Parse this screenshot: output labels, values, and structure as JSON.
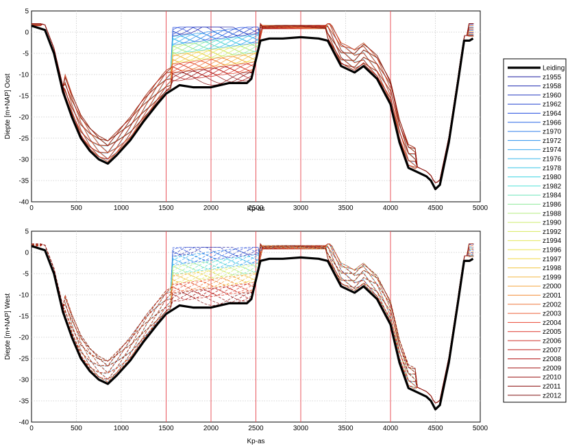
{
  "chart_data": [
    {
      "type": "line",
      "ylabel": "Diepte [m+NAP] Oost",
      "xlabel": "Kp-as",
      "xlim": [
        0,
        5000
      ],
      "ylim": [
        -40,
        5
      ],
      "xticks": [
        0,
        500,
        1000,
        1500,
        2000,
        2500,
        3000,
        3500,
        4000,
        4500,
        5000
      ],
      "yticks": [
        5,
        0,
        -5,
        -10,
        -15,
        -20,
        -25,
        -30,
        -35,
        -40
      ],
      "grid": true,
      "line_style_surveys": "solid",
      "vertical_markers": [
        1500,
        2000,
        2500,
        3000,
        4000
      ],
      "series": [
        {
          "name": "Leiding",
          "x": [
            0,
            150,
            250,
            350,
            450,
            550,
            650,
            750,
            850,
            950,
            1100,
            1250,
            1400,
            1500,
            1650,
            1800,
            2000,
            2200,
            2400,
            2450,
            2550,
            2650,
            2800,
            3000,
            3200,
            3300,
            3450,
            3600,
            3700,
            3850,
            4000,
            4100,
            4200,
            4300,
            4400,
            4450,
            4500,
            4550,
            4650,
            4750,
            4820,
            4880,
            4920
          ],
          "y": [
            1.5,
            0.5,
            -5,
            -14,
            -20,
            -25,
            -28,
            -30,
            -31,
            -29,
            -25.5,
            -21,
            -17,
            -14.5,
            -12.5,
            -13,
            -13,
            -12,
            -12,
            -11,
            -2,
            -1.5,
            -1.5,
            -1.2,
            -1.5,
            -2,
            -8,
            -9.5,
            -8,
            -11,
            -17,
            -26,
            -32,
            -33,
            -34,
            -35,
            -37,
            -36,
            -26,
            -12,
            -2,
            -2,
            -1.5
          ]
        }
      ],
      "survey_years": [
        "z1955",
        "z1958",
        "z1960",
        "z1962",
        "z1964",
        "z1966",
        "z1970",
        "z1972",
        "z1974",
        "z1976",
        "z1978",
        "z1980",
        "z1982",
        "z1984",
        "z1986",
        "z1988",
        "z1990",
        "z1992",
        "z1994",
        "z1996",
        "z1997",
        "z1998",
        "z1999",
        "z2000",
        "z2001",
        "z2002",
        "z2003",
        "z2004",
        "z2005",
        "z2006",
        "z2007",
        "z2008",
        "z2009",
        "z2010",
        "z2011",
        "z2012"
      ]
    },
    {
      "type": "line",
      "ylabel": "Diepte [m+NAP] West",
      "xlabel": "Kp-as",
      "xlim": [
        0,
        5000
      ],
      "ylim": [
        -40,
        5
      ],
      "xticks": [
        0,
        500,
        1000,
        1500,
        2000,
        2500,
        3000,
        3500,
        4000,
        4500,
        5000
      ],
      "yticks": [
        5,
        0,
        -5,
        -10,
        -15,
        -20,
        -25,
        -30,
        -35,
        -40
      ],
      "grid": true,
      "line_style_surveys": "dashed",
      "vertical_markers": [
        1500,
        2000,
        2500,
        3000,
        4000
      ],
      "series": [
        {
          "name": "Leiding",
          "x": [
            0,
            150,
            250,
            350,
            450,
            550,
            650,
            750,
            850,
            950,
            1100,
            1250,
            1400,
            1500,
            1650,
            1800,
            2000,
            2200,
            2400,
            2450,
            2550,
            2650,
            2800,
            3000,
            3200,
            3300,
            3450,
            3600,
            3700,
            3850,
            4000,
            4100,
            4200,
            4300,
            4400,
            4450,
            4500,
            4550,
            4650,
            4750,
            4820,
            4880,
            4920
          ],
          "y": [
            1.5,
            0.5,
            -5,
            -14,
            -20,
            -25,
            -28,
            -30,
            -31,
            -29,
            -25.5,
            -21,
            -17,
            -14.5,
            -12.5,
            -13,
            -13,
            -12,
            -12,
            -11,
            -2,
            -1.5,
            -1.5,
            -1.2,
            -1.5,
            -2,
            -8,
            -9.5,
            -8,
            -11,
            -17,
            -26,
            -32,
            -33,
            -34,
            -35,
            -37,
            -36,
            -26,
            -12,
            -2,
            -2,
            -1.5
          ]
        }
      ],
      "survey_years": [
        "z1955",
        "z1958",
        "z1960",
        "z1962",
        "z1964",
        "z1966",
        "z1970",
        "z1972",
        "z1974",
        "z1976",
        "z1978",
        "z1980",
        "z1982",
        "z1984",
        "z1986",
        "z1988",
        "z1990",
        "z1992",
        "z1994",
        "z1996",
        "z1997",
        "z1998",
        "z1999",
        "z2000",
        "z2001",
        "z2002",
        "z2003",
        "z2004",
        "z2005",
        "z2006",
        "z2007",
        "z2008",
        "z2009",
        "z2010",
        "z2011",
        "z2012"
      ]
    }
  ],
  "legend": {
    "placement": "right",
    "entries": [
      "Leiding",
      "z1955",
      "z1958",
      "z1960",
      "z1962",
      "z1964",
      "z1966",
      "z1970",
      "z1972",
      "z1974",
      "z1976",
      "z1978",
      "z1980",
      "z1982",
      "z1984",
      "z1986",
      "z1988",
      "z1990",
      "z1992",
      "z1994",
      "z1996",
      "z1997",
      "z1998",
      "z1999",
      "z2000",
      "z2001",
      "z2002",
      "z2003",
      "z2004",
      "z2005",
      "z2006",
      "z2007",
      "z2008",
      "z2009",
      "z2010",
      "z2011",
      "z2012"
    ]
  },
  "colors": {
    "leiding": "#000000",
    "markers": "#e8545c",
    "grid": "#c8c8c8",
    "survey_ramp": [
      "#1a1aa0",
      "#2850e0",
      "#2aa0f0",
      "#40e0e0",
      "#c8f070",
      "#f0e040",
      "#f5a040",
      "#e84030",
      "#b01010",
      "#801010"
    ]
  }
}
